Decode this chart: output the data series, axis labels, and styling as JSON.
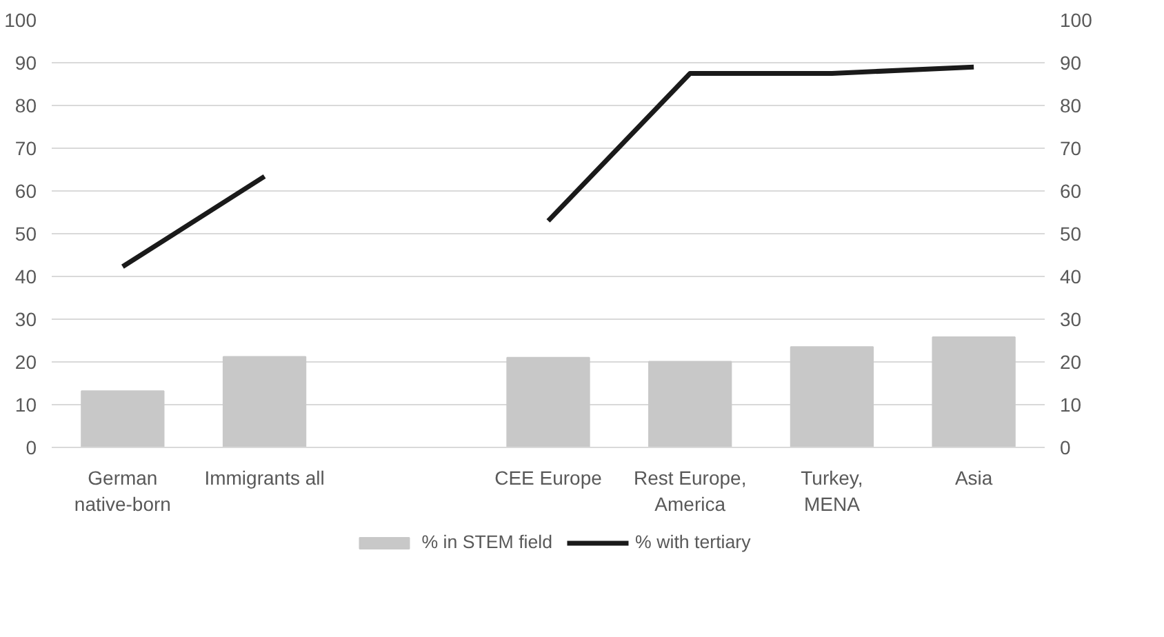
{
  "chart_data": {
    "type": "bar",
    "categories": [
      "German\nnative-born",
      "Immigrants all",
      null,
      "CEE Europe",
      "Rest Europe,\nAmerica",
      "Turkey,\nMENA",
      "Asia"
    ],
    "series": [
      {
        "name": "% in STEM field",
        "color": "#c8c8c8",
        "values": [
          13.2,
          21.2,
          null,
          21.0,
          20.1,
          23.5,
          25.8
        ]
      },
      {
        "name": "% with tertiary",
        "type": "line",
        "color": "#1a1a1a",
        "values": [
          42.3,
          63.4,
          null,
          53.0,
          87.5,
          87.5,
          89.0
        ]
      }
    ],
    "ylim": [
      0,
      100
    ],
    "yticks": [
      0,
      10,
      20,
      30,
      40,
      50,
      60,
      70,
      80,
      90,
      100
    ],
    "y2lim": [
      0,
      100
    ],
    "y2ticks": [
      0,
      10,
      20,
      30,
      40,
      50,
      60,
      70,
      80,
      90,
      100
    ],
    "grid": "y",
    "legend": "bottom",
    "line_style": "solid",
    "marker": "none"
  }
}
